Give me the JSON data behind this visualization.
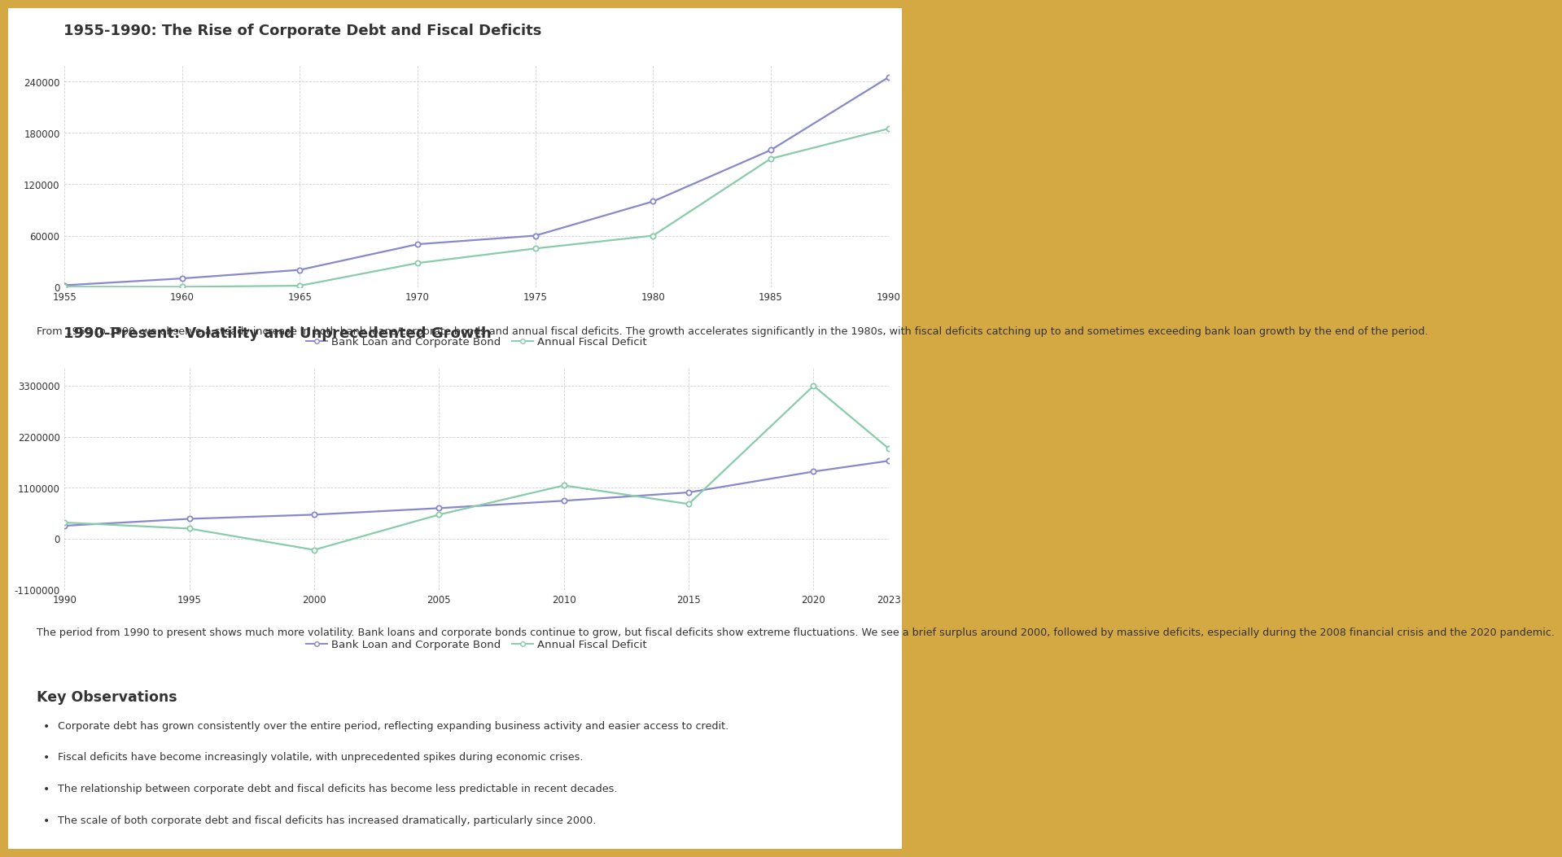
{
  "chart1_title": "1955-1990: The Rise of Corporate Debt and Fiscal Deficits",
  "chart2_title": "1990-Present: Volatility and Unprecedented Growth",
  "chart1_bank_x": [
    1955,
    1960,
    1965,
    1970,
    1975,
    1980,
    1985,
    1990
  ],
  "chart1_bank_y": [
    2000,
    10000,
    20000,
    50000,
    60000,
    100000,
    160000,
    245000
  ],
  "chart1_fiscal_x": [
    1955,
    1960,
    1965,
    1970,
    1975,
    1980,
    1985,
    1990
  ],
  "chart1_fiscal_y": [
    300,
    200,
    1500,
    28000,
    45000,
    60000,
    150000,
    185000
  ],
  "chart2_bank_x": [
    1990,
    1995,
    2000,
    2005,
    2010,
    2015,
    2020,
    2023
  ],
  "chart2_bank_y": [
    280000,
    430000,
    520000,
    660000,
    820000,
    1000000,
    1450000,
    1680000
  ],
  "chart2_fiscal_x": [
    1990,
    1995,
    2000,
    2005,
    2010,
    2015,
    2020,
    2023
  ],
  "chart2_fiscal_y": [
    350000,
    220000,
    -240000,
    520000,
    1150000,
    750000,
    3300000,
    1950000
  ],
  "bank_color": "#8888cc",
  "fiscal_color": "#88ccaa",
  "bank_label": "Bank Loan and Corporate Bond",
  "fiscal_label": "Annual Fiscal Deficit",
  "outer_bg": "#d4a843",
  "panel_bg": "#ffffff",
  "grid_color": "#cccccc",
  "text_color": "#333333",
  "title_fontsize": 13,
  "label_fontsize": 9.5,
  "tick_fontsize": 8.5,
  "desc1": "From 1955 to 1990, we observe a steady increase in both bank loans/corporate bonds and annual fiscal deficits. The growth accelerates significantly in the 1980s, with fiscal deficits catching up to and sometimes exceeding bank loan growth by the end of the period.",
  "desc2": "The period from 1990 to present shows much more volatility. Bank loans and corporate bonds continue to grow, but fiscal deficits show extreme fluctuations. We see a brief surplus around 2000, followed by massive deficits, especially during the 2008 financial crisis and the 2020 pandemic.",
  "key_obs_title": "Key Observations",
  "bullets": [
    "Corporate debt has grown consistently over the entire period, reflecting expanding business activity and easier access to credit.",
    "Fiscal deficits have become increasingly volatile, with unprecedented spikes during economic crises.",
    "The relationship between corporate debt and fiscal deficits has become less predictable in recent decades.",
    "The scale of both corporate debt and fiscal deficits has increased dramatically, particularly since 2000."
  ]
}
